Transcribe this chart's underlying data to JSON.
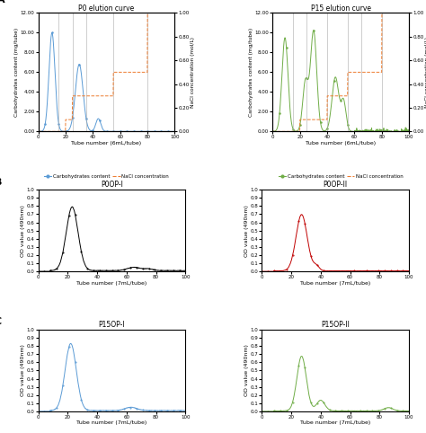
{
  "panel_A_left": {
    "title": "P0 elution curve",
    "xlabel": "Tube number (6mL/tube)",
    "ylabel_left": "Carbohydrates content (mg/tube)",
    "ylabel_right": "NaCl concentration (mol/L)",
    "ylim_left": [
      0,
      12
    ],
    "ylim_right": [
      0,
      1.0
    ],
    "yticks_left": [
      0.0,
      2.0,
      4.0,
      6.0,
      8.0,
      10.0,
      12.0
    ],
    "yticks_right": [
      0.0,
      0.2,
      0.4,
      0.6,
      0.8,
      1.0
    ],
    "xlim": [
      0,
      100
    ],
    "xticks": [
      0,
      20,
      40,
      60,
      80,
      100
    ],
    "vlines": [
      15,
      25,
      35,
      55,
      80
    ],
    "carb_color": "#5b9bd5",
    "nacl_color": "#ed7d31",
    "legend_labels": [
      "Carbohydrates content",
      "NaCl concentration"
    ]
  },
  "panel_A_right": {
    "title": "P15 elution curve",
    "xlabel": "Tube number (6mL/tube)",
    "ylabel_left": "Carbohydrates content (mg/tube)",
    "ylabel_right": "NaCl concentration (mol/L)",
    "ylim_left": [
      0,
      12
    ],
    "ylim_right": [
      0,
      1.0
    ],
    "yticks_left": [
      0.0,
      2.0,
      4.0,
      6.0,
      8.0,
      10.0,
      12.0
    ],
    "yticks_right": [
      0.0,
      0.2,
      0.4,
      0.6,
      0.8,
      1.0
    ],
    "xlim": [
      0,
      100
    ],
    "xticks": [
      0,
      20,
      40,
      60,
      80,
      100
    ],
    "vlines": [
      15,
      25,
      40,
      55,
      65,
      80
    ],
    "carb_color": "#70ad47",
    "nacl_color": "#ed7d31",
    "legend_labels": [
      "Carbohydrates content",
      "NaCl concentration"
    ]
  },
  "panel_B_left": {
    "title": "P0OP-I",
    "xlabel": "Tube number (7mL/tube)",
    "ylabel": "OD value (490nm)",
    "ylim": [
      0,
      1
    ],
    "yticks": [
      0,
      0.1,
      0.2,
      0.3,
      0.4,
      0.5,
      0.6,
      0.7,
      0.8,
      0.9,
      1
    ],
    "xlim": [
      0,
      100
    ],
    "xticks": [
      0,
      20,
      40,
      60,
      80,
      100
    ],
    "line_color": "#000000"
  },
  "panel_B_right": {
    "title": "P0OP-II",
    "xlabel": "Tube number (7mL/tube)",
    "ylabel": "OD value (490nm)",
    "ylim": [
      0,
      1
    ],
    "yticks": [
      0,
      0.1,
      0.2,
      0.3,
      0.4,
      0.5,
      0.6,
      0.7,
      0.8,
      0.9,
      1
    ],
    "xlim": [
      0,
      100
    ],
    "xticks": [
      0,
      20,
      40,
      60,
      80,
      100
    ],
    "line_color": "#c00000"
  },
  "panel_C_left": {
    "title": "P15OP-I",
    "xlabel": "Tube number (7mL/tube)",
    "ylabel": "OD value (490nm)",
    "ylim": [
      0,
      1
    ],
    "yticks": [
      0,
      0.1,
      0.2,
      0.3,
      0.4,
      0.5,
      0.6,
      0.7,
      0.8,
      0.9,
      1
    ],
    "xlim": [
      0,
      100
    ],
    "xticks": [
      0,
      20,
      40,
      60,
      80,
      100
    ],
    "line_color": "#5b9bd5"
  },
  "panel_C_right": {
    "title": "P15OP-II",
    "xlabel": "Tube number (7mL/tube)",
    "ylabel": "OD value (490nm)",
    "ylim": [
      0,
      1
    ],
    "yticks": [
      0,
      0.1,
      0.2,
      0.3,
      0.4,
      0.5,
      0.6,
      0.7,
      0.8,
      0.9,
      1
    ],
    "xlim": [
      0,
      100
    ],
    "xticks": [
      0,
      20,
      40,
      60,
      80,
      100
    ],
    "line_color": "#70ad47"
  },
  "label_fontsize": 4.5,
  "title_fontsize": 5.5,
  "tick_fontsize": 4.0,
  "legend_fontsize": 4.0,
  "row_label_fontsize": 8
}
